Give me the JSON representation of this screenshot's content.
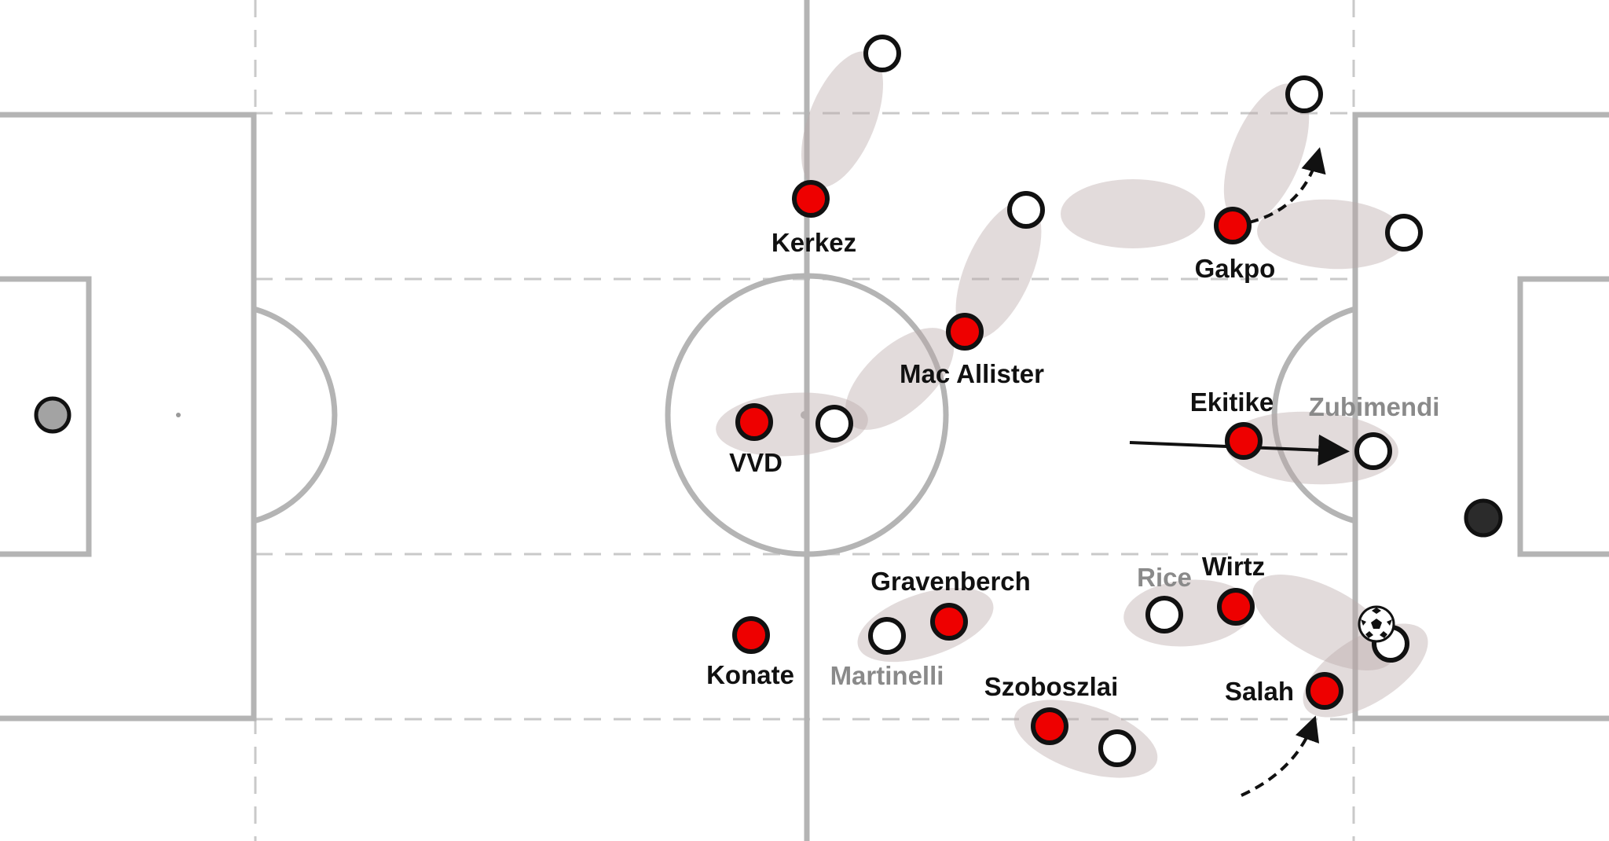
{
  "colors": {
    "pitch_line": "#b4b4b4",
    "dashed_line": "#c8c8c8",
    "pairing_zone": "#b9a9a9",
    "liverpool": "#ee0000",
    "opponent": "#ffffff",
    "keeper_left": "#a3a3a3",
    "keeper_right": "#2b2b2b",
    "outline": "#111111",
    "arrow": "#111111"
  },
  "players": {
    "liverpool": [
      {
        "id": "kerkez",
        "name": "Kerkez"
      },
      {
        "id": "mac-allister",
        "name": "Mac Allister"
      },
      {
        "id": "vvd",
        "name": "VVD"
      },
      {
        "id": "konate",
        "name": "Konate"
      },
      {
        "id": "gravenberch",
        "name": "Gravenberch"
      },
      {
        "id": "szoboszlai",
        "name": "Szoboszlai"
      },
      {
        "id": "ekitike",
        "name": "Ekitike"
      },
      {
        "id": "gakpo",
        "name": "Gakpo"
      },
      {
        "id": "wirtz",
        "name": "Wirtz"
      },
      {
        "id": "salah",
        "name": "Salah"
      }
    ],
    "opponents_labeled": [
      {
        "id": "zubimendi",
        "name": "Zubimendi"
      },
      {
        "id": "rice",
        "name": "Rice"
      },
      {
        "id": "martinelli",
        "name": "Martinelli"
      }
    ]
  },
  "icons": [
    "football-icon"
  ]
}
